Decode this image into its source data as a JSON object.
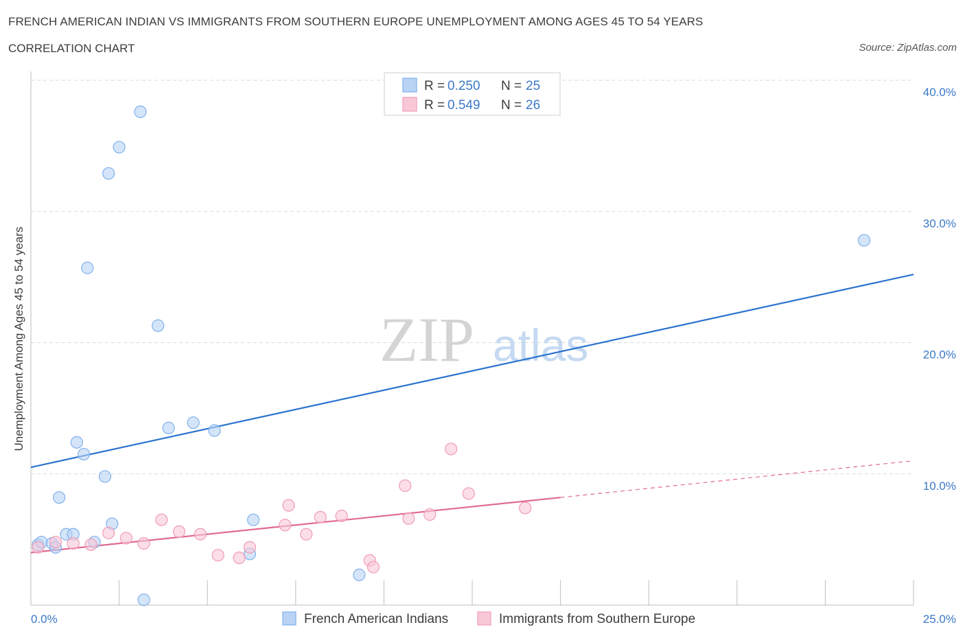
{
  "title": "FRENCH AMERICAN INDIAN VS IMMIGRANTS FROM SOUTHERN EUROPE UNEMPLOYMENT AMONG AGES 45 TO 54 YEARS",
  "subtitle": "CORRELATION CHART",
  "source": "Source: ZipAtlas.com",
  "watermark": {
    "zip": "ZIP",
    "atlas": "atlas"
  },
  "colors": {
    "blue": "#7fb0ec",
    "blue_fill": "#b9d3f5",
    "blue_line": "#2a72cf",
    "pink": "#f09cb6",
    "pink_fill": "#f9c8d7",
    "pink_line": "#e06a93",
    "axis_text": "#3b78c8",
    "grid": "#d9d9d9"
  },
  "legend_top": [
    {
      "r_label": "R = ",
      "r_value": "0.250",
      "n_label": "N = ",
      "n_value": "25",
      "series": "blue"
    },
    {
      "r_label": "R = ",
      "r_value": "0.549",
      "n_label": "N = ",
      "n_value": "26",
      "series": "pink"
    }
  ],
  "chart_data": {
    "type": "scatter",
    "ylabel": "Unemployment Among Ages 45 to 54 years",
    "xlabel": "",
    "xlim": [
      0,
      25
    ],
    "ylim": [
      0,
      40
    ],
    "x_tick_labels": [
      "0.0%",
      "25.0%"
    ],
    "y_ticks": [
      10,
      20,
      30,
      40
    ],
    "y_tick_labels": [
      "10.0%",
      "20.0%",
      "30.0%",
      "40.0%"
    ],
    "legend": [
      "French American Indians",
      "Immigrants from Southern Europe"
    ],
    "series": [
      {
        "name": "French American Indians",
        "color": "blue",
        "points": [
          [
            0.2,
            4.6
          ],
          [
            0.3,
            4.8
          ],
          [
            0.6,
            4.7
          ],
          [
            0.7,
            4.4
          ],
          [
            0.8,
            8.2
          ],
          [
            1.0,
            5.4
          ],
          [
            1.2,
            5.4
          ],
          [
            1.3,
            12.4
          ],
          [
            1.5,
            11.5
          ],
          [
            1.6,
            25.7
          ],
          [
            1.8,
            4.8
          ],
          [
            2.1,
            9.8
          ],
          [
            2.2,
            32.9
          ],
          [
            2.3,
            6.2
          ],
          [
            2.5,
            34.9
          ],
          [
            3.1,
            37.6
          ],
          [
            3.2,
            0.4
          ],
          [
            3.6,
            21.3
          ],
          [
            3.9,
            13.5
          ],
          [
            4.6,
            13.9
          ],
          [
            5.2,
            13.3
          ],
          [
            6.2,
            3.9
          ],
          [
            6.3,
            6.5
          ],
          [
            9.3,
            2.3
          ],
          [
            23.6,
            27.8
          ]
        ],
        "trend": {
          "x": [
            0,
            25
          ],
          "y": [
            10.5,
            25.2
          ],
          "dashed_extension": false
        }
      },
      {
        "name": "Immigrants from Southern Europe",
        "color": "pink",
        "points": [
          [
            0.2,
            4.4
          ],
          [
            0.7,
            4.8
          ],
          [
            1.2,
            4.7
          ],
          [
            1.7,
            4.6
          ],
          [
            2.2,
            5.5
          ],
          [
            2.7,
            5.1
          ],
          [
            3.2,
            4.7
          ],
          [
            3.7,
            6.5
          ],
          [
            4.2,
            5.6
          ],
          [
            4.8,
            5.4
          ],
          [
            5.3,
            3.8
          ],
          [
            5.9,
            3.6
          ],
          [
            6.2,
            4.4
          ],
          [
            7.2,
            6.1
          ],
          [
            7.3,
            7.6
          ],
          [
            7.8,
            5.4
          ],
          [
            8.2,
            6.7
          ],
          [
            8.8,
            6.8
          ],
          [
            9.6,
            3.4
          ],
          [
            9.7,
            2.9
          ],
          [
            10.6,
            9.1
          ],
          [
            10.7,
            6.6
          ],
          [
            11.3,
            6.9
          ],
          [
            11.9,
            11.9
          ],
          [
            12.4,
            8.5
          ],
          [
            14.0,
            7.4
          ]
        ],
        "trend": {
          "x": [
            0,
            15
          ],
          "y": [
            4.0,
            8.2
          ],
          "dashed_extension_to": [
            25,
            11.0
          ]
        }
      }
    ]
  }
}
